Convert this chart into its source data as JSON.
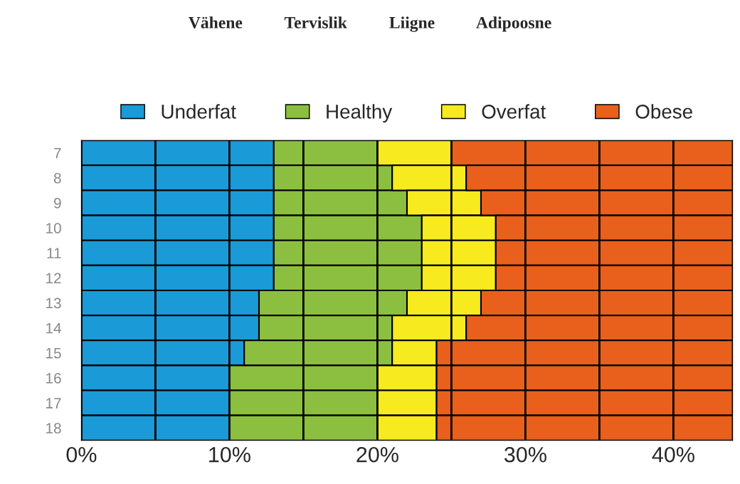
{
  "chart_data": {
    "type": "bar",
    "orientation": "horizontal",
    "stacked": true,
    "title": "Vähene          Tervislik          Liigne          Adipoosne",
    "categories": [
      "7",
      "8",
      "9",
      "10",
      "11",
      "12",
      "13",
      "14",
      "15",
      "16",
      "17",
      "18"
    ],
    "series": [
      {
        "name": "Underfat",
        "color": "#1a9ad6",
        "values": [
          13,
          13,
          13,
          13,
          13,
          13,
          12,
          12,
          11,
          10,
          10,
          10
        ]
      },
      {
        "name": "Healthy",
        "color": "#8cbf3f",
        "values": [
          7,
          8,
          9,
          10,
          10,
          10,
          10,
          9,
          10,
          10,
          10,
          10
        ]
      },
      {
        "name": "Overfat",
        "color": "#f7ea1e",
        "values": [
          5,
          5,
          5,
          5,
          5,
          5,
          5,
          5,
          3,
          4,
          4,
          4
        ]
      },
      {
        "name": "Obese",
        "color": "#e8601c",
        "values": [
          19,
          18,
          17,
          16,
          16,
          16,
          17,
          18,
          20,
          20,
          20,
          20
        ]
      }
    ],
    "xlim": [
      0,
      44
    ],
    "xticks": [
      {
        "value": 0,
        "label": "0%"
      },
      {
        "value": 5,
        "label": null
      },
      {
        "value": 10,
        "label": "10%"
      },
      {
        "value": 15,
        "label": null
      },
      {
        "value": 20,
        "label": "20%"
      },
      {
        "value": 25,
        "label": null
      },
      {
        "value": 30,
        "label": "30%"
      },
      {
        "value": 35,
        "label": null
      },
      {
        "value": 40,
        "label": "40%"
      }
    ],
    "grid": "x",
    "legend": "top"
  }
}
